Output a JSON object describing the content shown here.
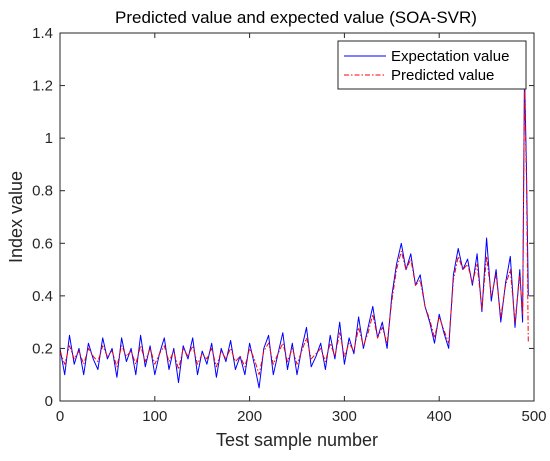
{
  "chart_data": {
    "type": "line",
    "title": "Predicted value and expected value (SOA-SVR)",
    "xlabel": "Test sample number",
    "ylabel": "Index value",
    "xlim": [
      0,
      500
    ],
    "ylim": [
      0,
      1.4
    ],
    "xticks": [
      0,
      100,
      200,
      300,
      400,
      500
    ],
    "yticks": [
      0,
      0.2,
      0.4,
      0.6,
      0.8,
      1,
      1.2,
      1.4
    ],
    "xtick_labels": [
      "0",
      "100",
      "200",
      "300",
      "400",
      "500"
    ],
    "ytick_labels": [
      "0",
      "0.2",
      "0.4",
      "0.6",
      "0.8",
      "1",
      "1.2",
      "1.4"
    ],
    "grid": false,
    "legend_position": "top-right",
    "series": [
      {
        "name": "Expectation value",
        "color": "#0000ff",
        "style": "solid",
        "x": [
          0,
          5,
          10,
          15,
          20,
          25,
          30,
          35,
          40,
          45,
          50,
          55,
          60,
          65,
          70,
          75,
          80,
          85,
          90,
          95,
          100,
          105,
          110,
          115,
          120,
          125,
          130,
          135,
          140,
          145,
          150,
          155,
          160,
          165,
          170,
          175,
          180,
          185,
          190,
          195,
          200,
          205,
          210,
          215,
          220,
          225,
          230,
          235,
          240,
          245,
          250,
          255,
          260,
          265,
          270,
          275,
          280,
          285,
          290,
          295,
          300,
          305,
          310,
          315,
          320,
          325,
          330,
          335,
          340,
          345,
          350,
          355,
          360,
          365,
          370,
          375,
          380,
          385,
          390,
          395,
          400,
          405,
          410,
          415,
          420,
          425,
          430,
          435,
          440,
          445,
          450,
          455,
          460,
          465,
          470,
          475,
          480,
          485,
          488,
          490,
          492,
          494
        ],
        "values": [
          0.2,
          0.1,
          0.25,
          0.14,
          0.2,
          0.1,
          0.22,
          0.16,
          0.12,
          0.24,
          0.16,
          0.2,
          0.09,
          0.24,
          0.15,
          0.2,
          0.1,
          0.25,
          0.13,
          0.21,
          0.1,
          0.18,
          0.24,
          0.12,
          0.2,
          0.07,
          0.21,
          0.16,
          0.24,
          0.1,
          0.19,
          0.14,
          0.22,
          0.09,
          0.2,
          0.15,
          0.23,
          0.12,
          0.17,
          0.1,
          0.22,
          0.14,
          0.05,
          0.2,
          0.25,
          0.1,
          0.18,
          0.26,
          0.12,
          0.22,
          0.1,
          0.2,
          0.28,
          0.13,
          0.17,
          0.22,
          0.12,
          0.25,
          0.16,
          0.3,
          0.14,
          0.24,
          0.18,
          0.32,
          0.2,
          0.28,
          0.36,
          0.24,
          0.3,
          0.2,
          0.4,
          0.52,
          0.6,
          0.5,
          0.56,
          0.44,
          0.48,
          0.36,
          0.3,
          0.22,
          0.33,
          0.26,
          0.2,
          0.48,
          0.58,
          0.5,
          0.54,
          0.44,
          0.56,
          0.34,
          0.62,
          0.38,
          0.5,
          0.3,
          0.45,
          0.55,
          0.28,
          0.5,
          0.3,
          1.25,
          0.9,
          0.4
        ]
      },
      {
        "name": "Predicted value",
        "color": "#ff0000",
        "style": "dashdot",
        "x": [
          0,
          5,
          10,
          15,
          20,
          25,
          30,
          35,
          40,
          45,
          50,
          55,
          60,
          65,
          70,
          75,
          80,
          85,
          90,
          95,
          100,
          105,
          110,
          115,
          120,
          125,
          130,
          135,
          140,
          145,
          150,
          155,
          160,
          165,
          170,
          175,
          180,
          185,
          190,
          195,
          200,
          205,
          210,
          215,
          220,
          225,
          230,
          235,
          240,
          245,
          250,
          255,
          260,
          265,
          270,
          275,
          280,
          285,
          290,
          295,
          300,
          305,
          310,
          315,
          320,
          325,
          330,
          335,
          340,
          345,
          350,
          355,
          360,
          365,
          370,
          375,
          380,
          385,
          390,
          395,
          400,
          405,
          410,
          415,
          420,
          425,
          430,
          435,
          440,
          445,
          450,
          455,
          460,
          465,
          470,
          475,
          480,
          485,
          488,
          490,
          492,
          494
        ],
        "values": [
          0.19,
          0.14,
          0.21,
          0.16,
          0.19,
          0.14,
          0.2,
          0.17,
          0.15,
          0.21,
          0.17,
          0.19,
          0.13,
          0.21,
          0.17,
          0.19,
          0.14,
          0.21,
          0.15,
          0.2,
          0.14,
          0.18,
          0.21,
          0.15,
          0.19,
          0.12,
          0.2,
          0.17,
          0.21,
          0.14,
          0.18,
          0.16,
          0.2,
          0.13,
          0.19,
          0.16,
          0.2,
          0.15,
          0.17,
          0.13,
          0.2,
          0.16,
          0.1,
          0.19,
          0.22,
          0.14,
          0.18,
          0.22,
          0.15,
          0.2,
          0.14,
          0.19,
          0.24,
          0.16,
          0.18,
          0.2,
          0.15,
          0.22,
          0.17,
          0.26,
          0.17,
          0.22,
          0.19,
          0.28,
          0.21,
          0.26,
          0.33,
          0.24,
          0.28,
          0.22,
          0.38,
          0.5,
          0.57,
          0.5,
          0.54,
          0.44,
          0.46,
          0.36,
          0.31,
          0.24,
          0.32,
          0.27,
          0.22,
          0.46,
          0.55,
          0.5,
          0.52,
          0.45,
          0.52,
          0.35,
          0.55,
          0.4,
          0.48,
          0.32,
          0.44,
          0.5,
          0.3,
          0.48,
          0.33,
          1.2,
          0.85,
          0.22
        ]
      }
    ]
  }
}
